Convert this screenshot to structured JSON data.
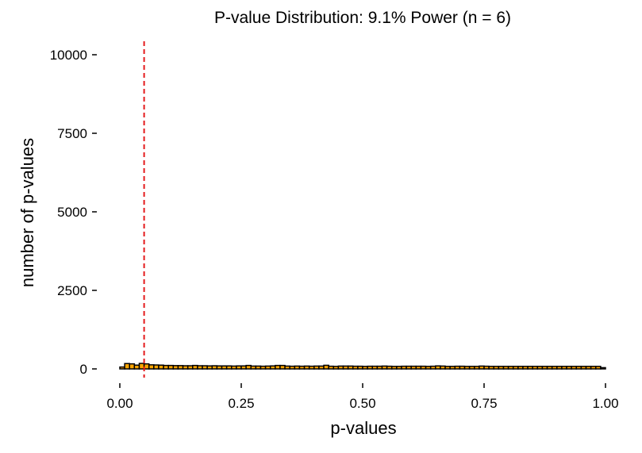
{
  "chart_data": {
    "type": "bar",
    "title": "P-value Distribution: 9.1% Power (n = 6)",
    "xlabel": "p-values",
    "ylabel": "number of p-values",
    "xlim": [
      0,
      1
    ],
    "ylim": [
      0,
      10000
    ],
    "x_ticks": [
      "0.00",
      "0.25",
      "0.50",
      "0.75",
      "1.00"
    ],
    "x_tick_values": [
      0,
      0.25,
      0.5,
      0.75,
      1
    ],
    "y_ticks": [
      "0",
      "2500",
      "5000",
      "7500",
      "10000"
    ],
    "y_tick_values": [
      0,
      2500,
      5000,
      7500,
      10000
    ],
    "bin_width": 0.01,
    "bin_starts_from": 0,
    "values": [
      60,
      170,
      160,
      120,
      175,
      160,
      130,
      125,
      120,
      110,
      110,
      105,
      105,
      100,
      100,
      110,
      100,
      100,
      95,
      100,
      95,
      95,
      95,
      90,
      95,
      95,
      110,
      90,
      90,
      85,
      90,
      95,
      110,
      110,
      90,
      85,
      90,
      85,
      90,
      85,
      90,
      90,
      115,
      85,
      80,
      90,
      90,
      90,
      85,
      85,
      80,
      85,
      85,
      85,
      90,
      85,
      80,
      80,
      85,
      85,
      85,
      85,
      85,
      80,
      85,
      95,
      90,
      80,
      80,
      85,
      85,
      80,
      80,
      80,
      90,
      85,
      80,
      80,
      80,
      80,
      80,
      80,
      80,
      80,
      80,
      80,
      80,
      80,
      80,
      80,
      80,
      80,
      80,
      80,
      80,
      80,
      80,
      80,
      80,
      40
    ],
    "threshold_line": {
      "x": 0.05,
      "style": "dashed",
      "color": "#e41a1c"
    },
    "colors": {
      "bar_fill": "#ffa500",
      "bar_stroke": "#000000"
    },
    "grid": false,
    "legend": "none"
  }
}
